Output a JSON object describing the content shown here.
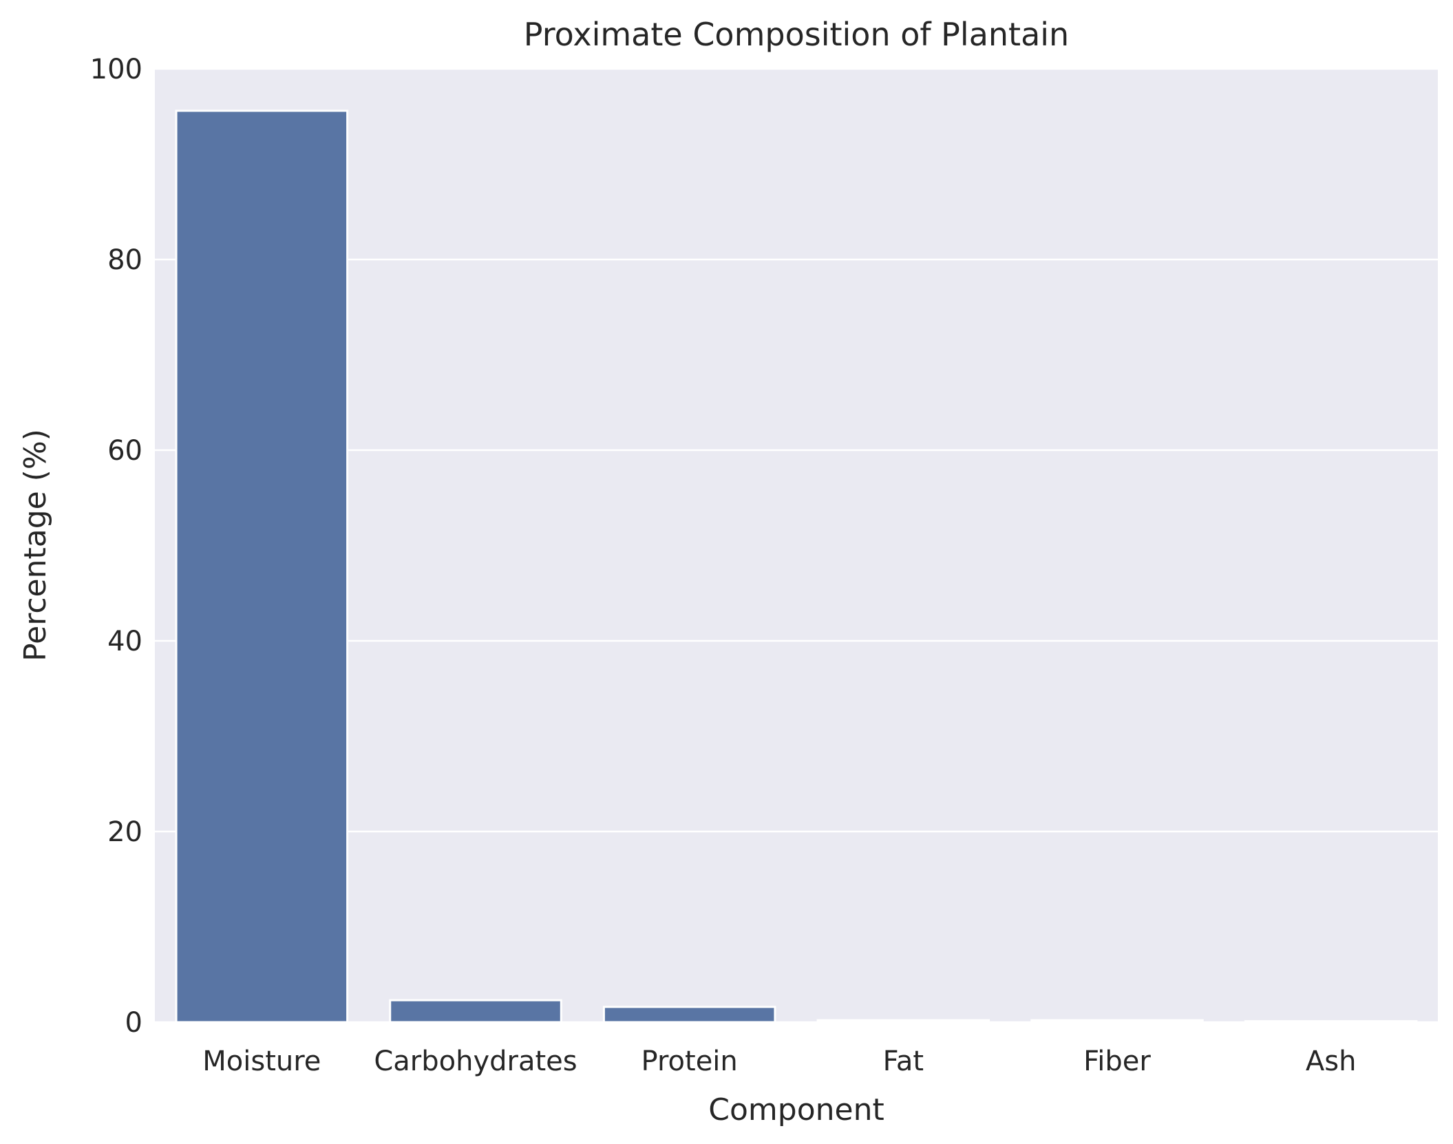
{
  "chart_data": {
    "type": "bar",
    "title": "Proximate Composition of Plantain",
    "xlabel": "Component",
    "ylabel": "Percentage (%)",
    "categories": [
      "Moisture",
      "Carbohydrates",
      "Protein",
      "Fat",
      "Fiber",
      "Ash"
    ],
    "values": [
      95.6,
      2.3,
      1.6,
      0.2,
      0.2,
      0.1
    ],
    "ylim": [
      0,
      100
    ],
    "yticks": [
      "0",
      "20",
      "40",
      "60",
      "80",
      "100"
    ],
    "grid": true,
    "legend": "none",
    "colors": {
      "bar": "#5975a4",
      "plot_background": "#eaeaf2",
      "grid": "#ffffff",
      "text": "#262626"
    }
  }
}
